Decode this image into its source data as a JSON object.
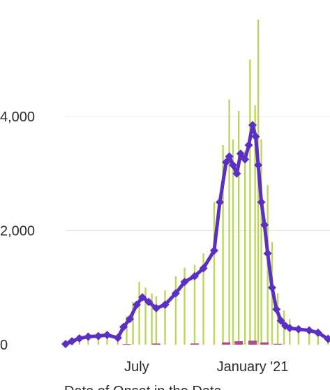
{
  "chart_data": {
    "type": "bar",
    "title": "",
    "xlabel": "Date of Onset in the Data",
    "ylabel": "",
    "ylim": [
      0,
      5800
    ],
    "y_ticks": [
      {
        "value": 0,
        "label": "0"
      },
      {
        "value": 2000,
        "label": "2,000"
      },
      {
        "value": 4000,
        "label": "4,000"
      }
    ],
    "x_ticks": [
      {
        "date": "2020-07-01",
        "label": "July"
      },
      {
        "date": "2021-01-01",
        "label": "January '21"
      }
    ],
    "x_range": [
      "2020-03-10",
      "2021-05-04"
    ],
    "grid": true,
    "colors": {
      "bars": "#bcd65a",
      "moving_average": "#5b2fc3",
      "secondary_bars": "#b04a90",
      "gridline": "#e6e6e6",
      "light_blue": "#6aaee0"
    },
    "series": [
      {
        "kind": "bars",
        "x": [
          "2020-03-15",
          "2020-04-01",
          "2020-04-15",
          "2020-05-01",
          "2020-05-15",
          "2020-06-01",
          "2020-06-15",
          "2020-06-25",
          "2020-07-05",
          "2020-07-15",
          "2020-07-25",
          "2020-08-01",
          "2020-08-15",
          "2020-09-01",
          "2020-09-15",
          "2020-10-01",
          "2020-10-15",
          "2020-11-01",
          "2020-11-15",
          "2020-11-25",
          "2020-12-01",
          "2020-12-10",
          "2020-12-20",
          "2020-12-28",
          "2021-01-05",
          "2021-01-10",
          "2021-01-15",
          "2021-01-25",
          "2021-02-01",
          "2021-02-10",
          "2021-02-20",
          "2021-03-01",
          "2021-03-15",
          "2021-04-01",
          "2021-04-15",
          "2021-05-01"
        ],
        "values": [
          80,
          160,
          180,
          180,
          200,
          150,
          500,
          750,
          1100,
          1000,
          900,
          850,
          950,
          1200,
          1350,
          1400,
          1600,
          2500,
          3500,
          4300,
          3600,
          4100,
          3400,
          5000,
          4200,
          5700,
          3600,
          2800,
          1800,
          900,
          600,
          450,
          330,
          280,
          250,
          180
        ]
      },
      {
        "kind": "line",
        "x": [
          "2020-03-10",
          "2020-03-20",
          "2020-04-01",
          "2020-04-15",
          "2020-05-01",
          "2020-05-15",
          "2020-06-01",
          "2020-06-10",
          "2020-06-20",
          "2020-07-01",
          "2020-07-10",
          "2020-07-20",
          "2020-08-01",
          "2020-08-15",
          "2020-09-01",
          "2020-09-15",
          "2020-10-01",
          "2020-10-15",
          "2020-11-01",
          "2020-11-10",
          "2020-11-20",
          "2020-11-25",
          "2020-12-01",
          "2020-12-07",
          "2020-12-13",
          "2020-12-20",
          "2020-12-26",
          "2021-01-01",
          "2021-01-06",
          "2021-01-10",
          "2021-01-15",
          "2021-01-20",
          "2021-01-25",
          "2021-02-01",
          "2021-02-08",
          "2021-02-15",
          "2021-02-22",
          "2021-03-01",
          "2021-03-15",
          "2021-04-01",
          "2021-04-15",
          "2021-05-01"
        ],
        "values": [
          10,
          60,
          110,
          140,
          150,
          170,
          120,
          310,
          450,
          700,
          830,
          750,
          640,
          700,
          900,
          1100,
          1200,
          1340,
          1650,
          2500,
          3200,
          3300,
          3150,
          3000,
          3350,
          3250,
          3500,
          3850,
          3650,
          3150,
          2500,
          2100,
          1600,
          1000,
          620,
          420,
          330,
          290,
          270,
          250,
          210,
          100
        ]
      },
      {
        "kind": "bars",
        "x": [
          "2020-06-15",
          "2020-08-01",
          "2020-10-01",
          "2020-11-20",
          "2020-12-10",
          "2021-01-01",
          "2021-01-20",
          "2021-02-10"
        ],
        "values": [
          10,
          20,
          20,
          40,
          60,
          70,
          40,
          15
        ]
      }
    ]
  }
}
